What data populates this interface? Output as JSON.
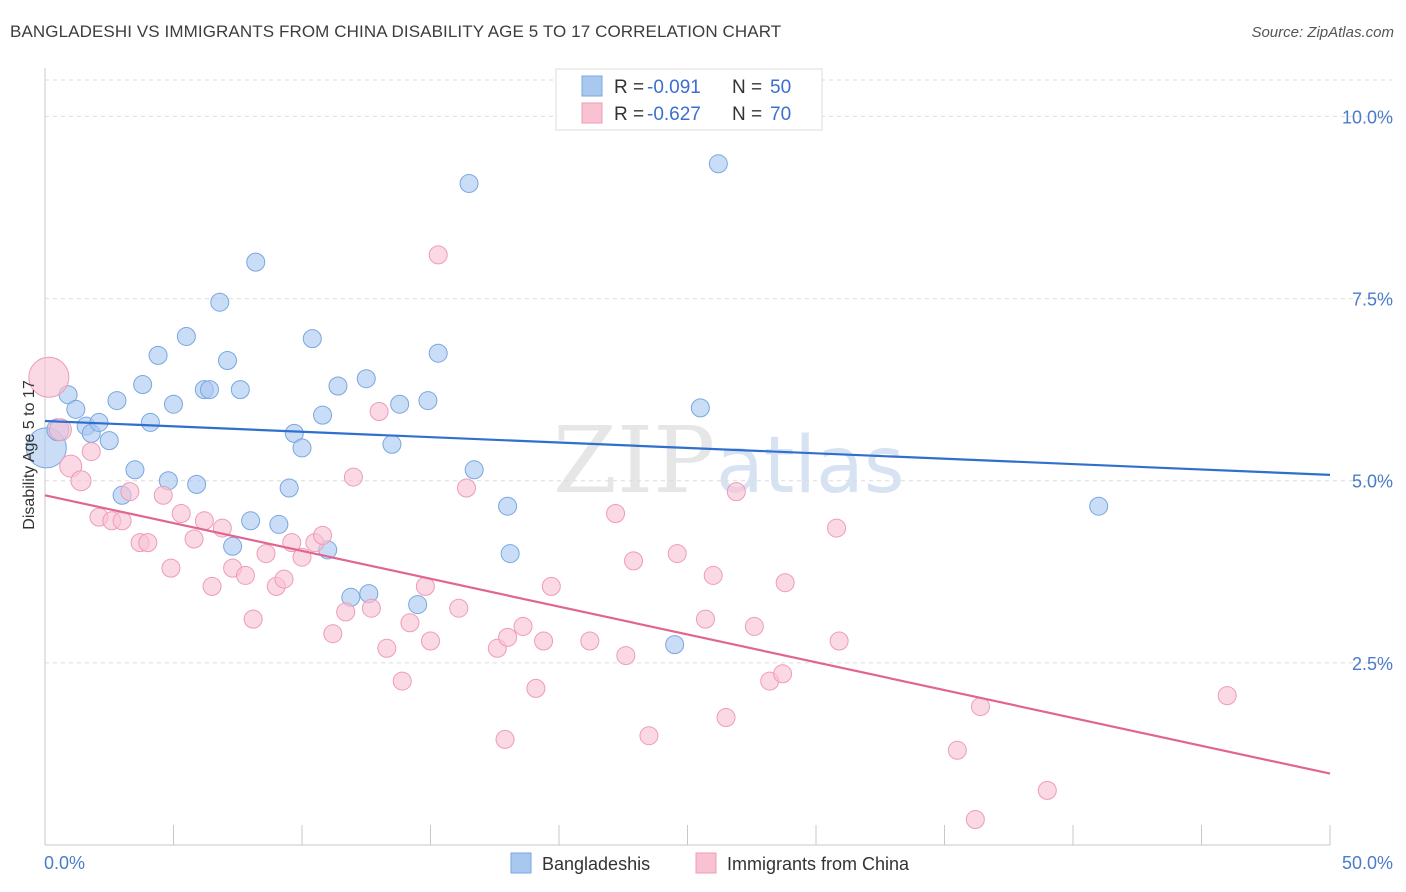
{
  "title": "BANGLADESHI VS IMMIGRANTS FROM CHINA DISABILITY AGE 5 TO 17 CORRELATION CHART",
  "source": "Source: ZipAtlas.com",
  "watermark": {
    "zip": "ZIP",
    "atlas": "atlas"
  },
  "chart_data": {
    "type": "scatter",
    "title": "BANGLADESHI VS IMMIGRANTS FROM CHINA DISABILITY AGE 5 TO 17 CORRELATION CHART",
    "ylabel": "Disability Age 5 to 17",
    "xlabel": "",
    "xlim": [
      0,
      50
    ],
    "ylim": [
      0,
      10.5
    ],
    "x_tick_labels": [
      "0.0%",
      "50.0%"
    ],
    "y_ticks": [
      2.5,
      5.0,
      7.5,
      10.0
    ],
    "y_tick_labels": [
      "2.5%",
      "5.0%",
      "7.5%",
      "10.0%"
    ],
    "grid": true,
    "legend_position": "top-center",
    "series": [
      {
        "name": "Bangladeshis",
        "color": "#a9c8f0",
        "edge_color": "#7aa6e0",
        "line_color": "#2f6fce",
        "r_label": "R = ",
        "r_value": "-0.091",
        "n_label": "N = ",
        "n_value": "50",
        "trend": {
          "x": [
            0,
            50
          ],
          "y": [
            5.82,
            5.08
          ]
        },
        "points": [
          [
            0.05,
            5.45,
            20
          ],
          [
            0.5,
            5.7,
            11
          ],
          [
            0.9,
            6.18,
            9
          ],
          [
            1.2,
            5.98,
            9
          ],
          [
            1.6,
            5.75,
            9
          ],
          [
            1.8,
            5.65,
            9
          ],
          [
            2.1,
            5.8,
            9
          ],
          [
            2.5,
            5.55,
            9
          ],
          [
            2.8,
            6.1,
            9
          ],
          [
            3.0,
            4.8,
            9
          ],
          [
            3.5,
            5.15,
            9
          ],
          [
            3.8,
            6.32,
            9
          ],
          [
            4.1,
            5.8,
            9
          ],
          [
            4.4,
            6.72,
            9
          ],
          [
            4.8,
            5.0,
            9
          ],
          [
            5.0,
            6.05,
            9
          ],
          [
            5.5,
            6.98,
            9
          ],
          [
            5.9,
            4.95,
            9
          ],
          [
            6.2,
            6.25,
            9
          ],
          [
            6.4,
            6.25,
            9
          ],
          [
            6.8,
            7.45,
            9
          ],
          [
            7.1,
            6.65,
            9
          ],
          [
            7.3,
            4.1,
            9
          ],
          [
            7.6,
            6.25,
            9
          ],
          [
            8.0,
            4.45,
            9
          ],
          [
            8.2,
            8.0,
            9
          ],
          [
            9.1,
            4.4,
            9
          ],
          [
            9.5,
            4.9,
            9
          ],
          [
            9.7,
            5.65,
            9
          ],
          [
            10.0,
            5.45,
            9
          ],
          [
            10.4,
            6.95,
            9
          ],
          [
            10.8,
            5.9,
            9
          ],
          [
            11.0,
            4.05,
            9
          ],
          [
            11.4,
            6.3,
            9
          ],
          [
            11.9,
            3.4,
            9
          ],
          [
            12.5,
            6.4,
            9
          ],
          [
            12.6,
            3.45,
            9
          ],
          [
            13.5,
            5.5,
            9
          ],
          [
            13.8,
            6.05,
            9
          ],
          [
            14.5,
            3.3,
            9
          ],
          [
            14.9,
            6.1,
            9
          ],
          [
            15.3,
            6.75,
            9
          ],
          [
            16.5,
            9.08,
            9
          ],
          [
            16.7,
            5.15,
            9
          ],
          [
            18.0,
            4.65,
            9
          ],
          [
            18.1,
            4.0,
            9
          ],
          [
            24.5,
            2.75,
            9
          ],
          [
            25.5,
            6.0,
            9
          ],
          [
            26.2,
            9.35,
            9
          ],
          [
            41.0,
            4.65,
            9
          ]
        ]
      },
      {
        "name": "Immigrants from China",
        "color": "#f8c2d3",
        "edge_color": "#ee9cb6",
        "line_color": "#e06690",
        "r_label": "R = ",
        "r_value": "-0.627",
        "n_label": "N = ",
        "n_value": "70",
        "trend": {
          "x": [
            0,
            50
          ],
          "y": [
            4.8,
            0.98
          ]
        },
        "points": [
          [
            0.15,
            6.42,
            20
          ],
          [
            0.6,
            5.7,
            11
          ],
          [
            1.0,
            5.2,
            11
          ],
          [
            1.4,
            5.0,
            10
          ],
          [
            1.8,
            5.4,
            9
          ],
          [
            2.1,
            4.5,
            9
          ],
          [
            2.6,
            4.45,
            9
          ],
          [
            3.0,
            4.45,
            9
          ],
          [
            3.3,
            4.85,
            9
          ],
          [
            3.7,
            4.15,
            9
          ],
          [
            4.0,
            4.15,
            9
          ],
          [
            4.6,
            4.8,
            9
          ],
          [
            4.9,
            3.8,
            9
          ],
          [
            5.3,
            4.55,
            9
          ],
          [
            5.8,
            4.2,
            9
          ],
          [
            6.2,
            4.45,
            9
          ],
          [
            6.5,
            3.55,
            9
          ],
          [
            6.9,
            4.35,
            9
          ],
          [
            7.3,
            3.8,
            9
          ],
          [
            7.8,
            3.7,
            9
          ],
          [
            8.1,
            3.1,
            9
          ],
          [
            8.6,
            4.0,
            9
          ],
          [
            9.0,
            3.55,
            9
          ],
          [
            9.3,
            3.65,
            9
          ],
          [
            9.6,
            4.15,
            9
          ],
          [
            10.0,
            3.95,
            9
          ],
          [
            10.5,
            4.15,
            9
          ],
          [
            10.8,
            4.25,
            9
          ],
          [
            11.2,
            2.9,
            9
          ],
          [
            11.7,
            3.2,
            9
          ],
          [
            12.0,
            5.05,
            9
          ],
          [
            12.7,
            3.25,
            9
          ],
          [
            13.0,
            5.95,
            9
          ],
          [
            13.3,
            2.7,
            9
          ],
          [
            13.9,
            2.25,
            9
          ],
          [
            14.2,
            3.05,
            9
          ],
          [
            14.8,
            3.55,
            9
          ],
          [
            15.0,
            2.8,
            9
          ],
          [
            15.3,
            8.1,
            9
          ],
          [
            16.1,
            3.25,
            9
          ],
          [
            16.4,
            4.9,
            9
          ],
          [
            17.6,
            2.7,
            9
          ],
          [
            17.9,
            1.45,
            9
          ],
          [
            18.0,
            2.85,
            9
          ],
          [
            18.6,
            3.0,
            9
          ],
          [
            19.1,
            2.15,
            9
          ],
          [
            19.4,
            2.8,
            9
          ],
          [
            19.7,
            3.55,
            9
          ],
          [
            21.2,
            2.8,
            9
          ],
          [
            22.2,
            4.55,
            9
          ],
          [
            22.6,
            2.6,
            9
          ],
          [
            22.9,
            3.9,
            9
          ],
          [
            23.5,
            1.5,
            9
          ],
          [
            24.6,
            4.0,
            9
          ],
          [
            25.7,
            3.1,
            9
          ],
          [
            26.0,
            3.7,
            9
          ],
          [
            26.5,
            1.75,
            9
          ],
          [
            26.9,
            4.85,
            9
          ],
          [
            27.6,
            3.0,
            9
          ],
          [
            28.2,
            2.25,
            9
          ],
          [
            28.7,
            2.35,
            9
          ],
          [
            28.8,
            3.6,
            9
          ],
          [
            30.9,
            2.8,
            9
          ],
          [
            30.8,
            4.35,
            9
          ],
          [
            35.5,
            1.3,
            9
          ],
          [
            36.2,
            0.35,
            9
          ],
          [
            36.4,
            1.9,
            9
          ],
          [
            39.0,
            0.75,
            9
          ],
          [
            46.0,
            2.05,
            9
          ],
          [
            50.5,
            0.0,
            0
          ]
        ]
      }
    ]
  }
}
